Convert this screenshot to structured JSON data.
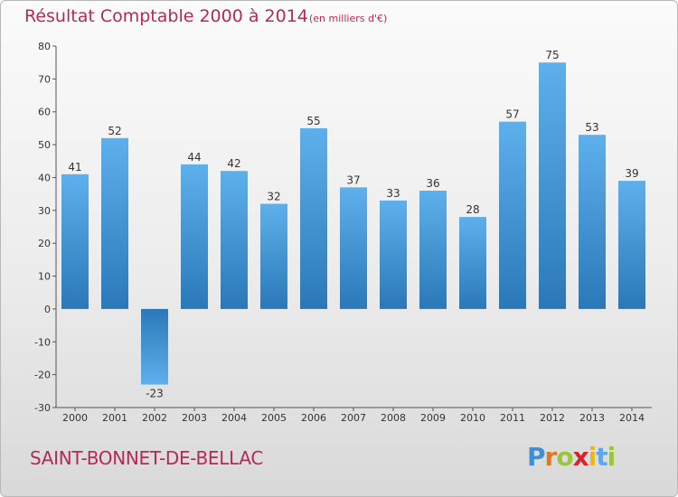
{
  "title": "Résultat Comptable 2000 à 2014",
  "subtitle": "(en milliers d'€)",
  "commune": "SAINT-BONNET-DE-BELLAC",
  "logo": {
    "letters": [
      "P",
      "r",
      "o",
      "x",
      "i",
      "t",
      "i"
    ],
    "colors": [
      "#3c8fd8",
      "#e07a1f",
      "#9bc53d",
      "#d9232a",
      "#f2b705",
      "#5ea7e8",
      "#9bc53d"
    ]
  },
  "chart_data": {
    "type": "bar",
    "title": "Résultat Comptable 2000 à 2014",
    "unit": "(en milliers d'€)",
    "categories": [
      "2000",
      "2001",
      "2002",
      "2003",
      "2004",
      "2005",
      "2006",
      "2007",
      "2008",
      "2009",
      "2010",
      "2011",
      "2012",
      "2013",
      "2014"
    ],
    "values": [
      41,
      52,
      -23,
      44,
      42,
      32,
      55,
      37,
      33,
      36,
      28,
      57,
      75,
      53,
      39
    ],
    "ylim": [
      -30,
      80
    ],
    "yticks": [
      -30,
      -20,
      -10,
      0,
      10,
      20,
      30,
      40,
      50,
      60,
      70,
      80
    ],
    "grid": false,
    "bar_color": "#3f97dc"
  }
}
